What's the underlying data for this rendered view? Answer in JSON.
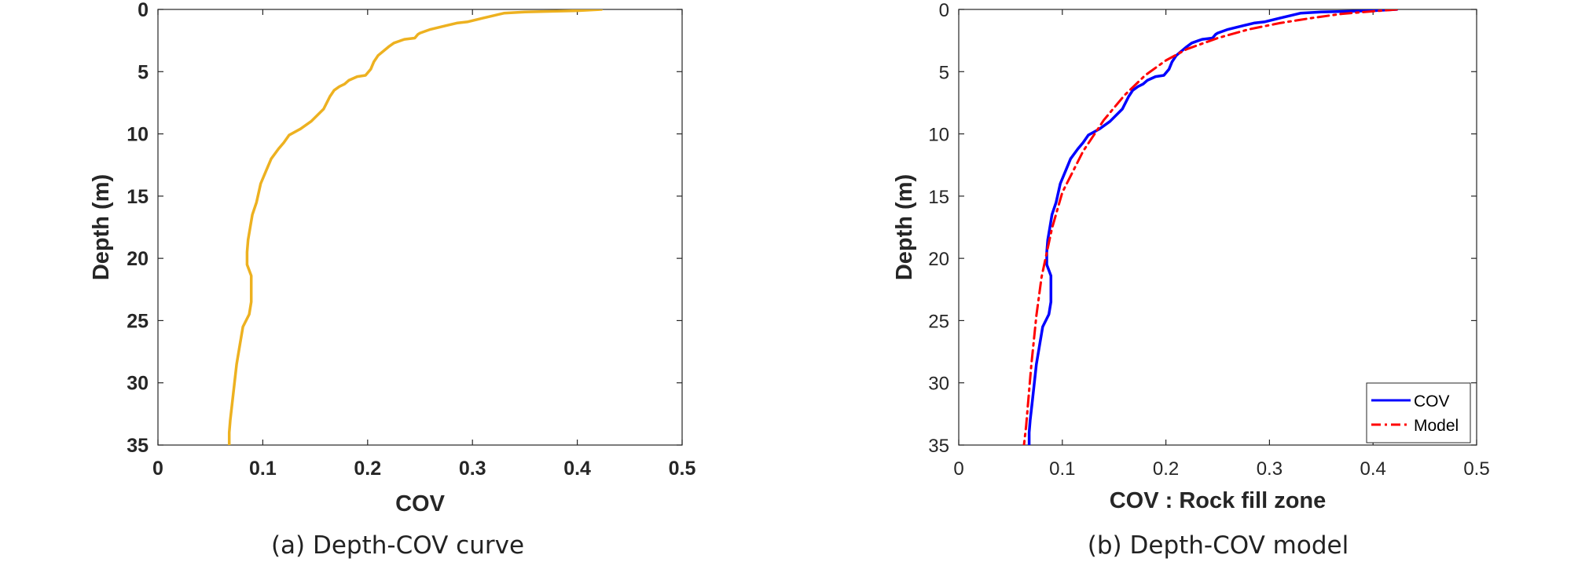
{
  "chart_data": [
    {
      "type": "line",
      "id": "a",
      "caption": "(a) Depth-COV curve",
      "xlabel": "COV",
      "ylabel": "Depth (m)",
      "xlim": [
        0,
        0.5
      ],
      "ylim": [
        0,
        35
      ],
      "y_reversed": true,
      "x_ticks": [
        "0",
        "0.1",
        "0.2",
        "0.3",
        "0.4",
        "0.5"
      ],
      "y_ticks": [
        "0",
        "5",
        "10",
        "15",
        "20",
        "25",
        "30",
        "35"
      ],
      "grid": false,
      "legend": null,
      "series": [
        {
          "name": "",
          "color": "#EDB120",
          "style": "solid",
          "points": [
            [
              0.423,
              0.0
            ],
            [
              0.4,
              0.1
            ],
            [
              0.35,
              0.2
            ],
            [
              0.33,
              0.3
            ],
            [
              0.32,
              0.5
            ],
            [
              0.31,
              0.7
            ],
            [
              0.295,
              1.0
            ],
            [
              0.285,
              1.1
            ],
            [
              0.275,
              1.3
            ],
            [
              0.26,
              1.6
            ],
            [
              0.25,
              1.9
            ],
            [
              0.248,
              2.0
            ],
            [
              0.245,
              2.3
            ],
            [
              0.235,
              2.4
            ],
            [
              0.225,
              2.7
            ],
            [
              0.22,
              3.0
            ],
            [
              0.21,
              3.7
            ],
            [
              0.206,
              4.2
            ],
            [
              0.203,
              4.8
            ],
            [
              0.198,
              5.3
            ],
            [
              0.19,
              5.4
            ],
            [
              0.182,
              5.7
            ],
            [
              0.178,
              6.0
            ],
            [
              0.173,
              6.2
            ],
            [
              0.168,
              6.5
            ],
            [
              0.164,
              7.0
            ],
            [
              0.158,
              8.0
            ],
            [
              0.146,
              9.0
            ],
            [
              0.136,
              9.6
            ],
            [
              0.125,
              10.1
            ],
            [
              0.12,
              10.7
            ],
            [
              0.115,
              11.2
            ],
            [
              0.108,
              12.0
            ],
            [
              0.103,
              13.0
            ],
            [
              0.098,
              14.0
            ],
            [
              0.094,
              15.5
            ],
            [
              0.09,
              16.5
            ],
            [
              0.088,
              17.5
            ],
            [
              0.086,
              18.5
            ],
            [
              0.085,
              19.5
            ],
            [
              0.085,
              20.5
            ],
            [
              0.089,
              21.4
            ],
            [
              0.089,
              22.5
            ],
            [
              0.089,
              23.5
            ],
            [
              0.087,
              24.5
            ],
            [
              0.081,
              25.5
            ],
            [
              0.078,
              27.0
            ],
            [
              0.075,
              28.5
            ],
            [
              0.073,
              30.0
            ],
            [
              0.071,
              31.5
            ],
            [
              0.069,
              33.0
            ],
            [
              0.068,
              34.0
            ],
            [
              0.068,
              35.0
            ]
          ]
        }
      ]
    },
    {
      "type": "line",
      "id": "b",
      "caption": "(b) Depth-COV model",
      "xlabel": "COV : Rock fill zone",
      "ylabel": "Depth (m)",
      "xlim": [
        0,
        0.5
      ],
      "ylim": [
        0,
        35
      ],
      "y_reversed": true,
      "x_ticks": [
        "0",
        "0.1",
        "0.2",
        "0.3",
        "0.4",
        "0.5"
      ],
      "y_ticks": [
        "0",
        "5",
        "10",
        "15",
        "20",
        "25",
        "30",
        "35"
      ],
      "grid": false,
      "legend": {
        "position": "bottom-right"
      },
      "series": [
        {
          "name": "COV",
          "color": "#0000FF",
          "style": "solid",
          "points": [
            [
              0.423,
              0.0
            ],
            [
              0.4,
              0.1
            ],
            [
              0.35,
              0.2
            ],
            [
              0.33,
              0.3
            ],
            [
              0.32,
              0.5
            ],
            [
              0.31,
              0.7
            ],
            [
              0.295,
              1.0
            ],
            [
              0.285,
              1.1
            ],
            [
              0.275,
              1.3
            ],
            [
              0.26,
              1.6
            ],
            [
              0.25,
              1.9
            ],
            [
              0.248,
              2.0
            ],
            [
              0.245,
              2.3
            ],
            [
              0.235,
              2.4
            ],
            [
              0.225,
              2.7
            ],
            [
              0.22,
              3.0
            ],
            [
              0.21,
              3.7
            ],
            [
              0.206,
              4.2
            ],
            [
              0.203,
              4.8
            ],
            [
              0.198,
              5.3
            ],
            [
              0.19,
              5.4
            ],
            [
              0.182,
              5.7
            ],
            [
              0.178,
              6.0
            ],
            [
              0.173,
              6.2
            ],
            [
              0.168,
              6.5
            ],
            [
              0.164,
              7.0
            ],
            [
              0.158,
              8.0
            ],
            [
              0.146,
              9.0
            ],
            [
              0.136,
              9.6
            ],
            [
              0.125,
              10.1
            ],
            [
              0.12,
              10.7
            ],
            [
              0.115,
              11.2
            ],
            [
              0.108,
              12.0
            ],
            [
              0.103,
              13.0
            ],
            [
              0.098,
              14.0
            ],
            [
              0.094,
              15.5
            ],
            [
              0.09,
              16.5
            ],
            [
              0.088,
              17.5
            ],
            [
              0.086,
              18.5
            ],
            [
              0.085,
              19.5
            ],
            [
              0.085,
              20.5
            ],
            [
              0.089,
              21.4
            ],
            [
              0.089,
              22.5
            ],
            [
              0.089,
              23.5
            ],
            [
              0.087,
              24.5
            ],
            [
              0.081,
              25.5
            ],
            [
              0.078,
              27.0
            ],
            [
              0.075,
              28.5
            ],
            [
              0.073,
              30.0
            ],
            [
              0.071,
              31.5
            ],
            [
              0.069,
              33.0
            ],
            [
              0.068,
              34.0
            ],
            [
              0.068,
              35.0
            ]
          ]
        },
        {
          "name": "Model",
          "color": "#FF0000",
          "style": "dashdot",
          "points": [
            [
              0.423,
              0.0
            ],
            [
              0.4,
              0.15
            ],
            [
              0.37,
              0.35
            ],
            [
              0.34,
              0.7
            ],
            [
              0.31,
              1.1
            ],
            [
              0.28,
              1.6
            ],
            [
              0.25,
              2.3
            ],
            [
              0.22,
              3.2
            ],
            [
              0.2,
              4.1
            ],
            [
              0.18,
              5.3
            ],
            [
              0.16,
              6.9
            ],
            [
              0.14,
              8.9
            ],
            [
              0.12,
              11.4
            ],
            [
              0.1,
              14.7
            ],
            [
              0.09,
              17.6
            ],
            [
              0.08,
              21.5
            ],
            [
              0.075,
              24.6
            ],
            [
              0.07,
              28.6
            ],
            [
              0.065,
              33.5
            ],
            [
              0.063,
              35.0
            ]
          ]
        }
      ]
    }
  ]
}
